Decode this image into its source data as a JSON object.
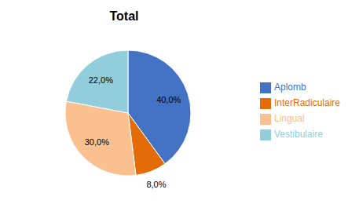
{
  "chart_data": {
    "type": "pie",
    "title": "Total",
    "categories": [
      "Aplomb",
      "InterRadiculaire",
      "Lingual",
      "Vestibulaire"
    ],
    "values": [
      40.0,
      8.0,
      30.0,
      22.0
    ],
    "value_labels": [
      "40,0%",
      "8,0%",
      "30,0%",
      "22,0%"
    ],
    "colors": [
      "#4472c4",
      "#e36c09",
      "#fac090",
      "#92cddc"
    ],
    "data_labels": true,
    "legend": "right"
  }
}
